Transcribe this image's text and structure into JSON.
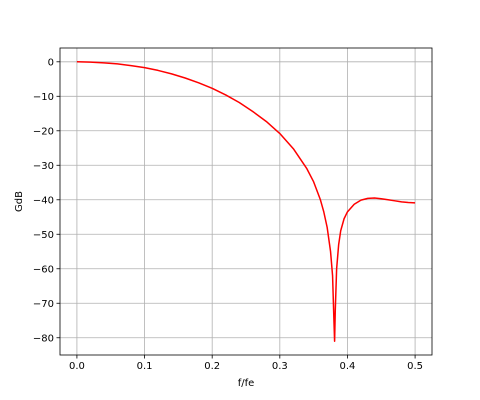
{
  "chart_data": {
    "type": "line",
    "title": "",
    "xlabel": "f/fe",
    "ylabel": "GdB",
    "xlim": [
      -0.025,
      0.525
    ],
    "ylim": [
      -85,
      4
    ],
    "grid": true,
    "xticks": [
      0.0,
      0.1,
      0.2,
      0.3,
      0.4,
      0.5
    ],
    "xtick_labels": [
      "0.0",
      "0.1",
      "0.2",
      "0.3",
      "0.4",
      "0.5"
    ],
    "yticks": [
      0,
      -10,
      -20,
      -30,
      -40,
      -50,
      -60,
      -70,
      -80
    ],
    "ytick_labels": [
      "0",
      "−10",
      "−20",
      "−30",
      "−40",
      "−50",
      "−60",
      "−70",
      "−80"
    ],
    "series": [
      {
        "color": "#ff0000",
        "x": [
          0.0,
          0.02,
          0.04,
          0.06,
          0.08,
          0.1,
          0.12,
          0.14,
          0.16,
          0.18,
          0.2,
          0.22,
          0.24,
          0.26,
          0.28,
          0.3,
          0.32,
          0.34,
          0.35,
          0.36,
          0.365,
          0.37,
          0.375,
          0.378,
          0.38,
          0.381,
          0.382,
          0.384,
          0.387,
          0.39,
          0.395,
          0.4,
          0.41,
          0.42,
          0.43,
          0.44,
          0.45,
          0.46,
          0.47,
          0.48,
          0.49,
          0.5
        ],
        "y": [
          0.0,
          -0.1,
          -0.3,
          -0.6,
          -1.1,
          -1.7,
          -2.5,
          -3.5,
          -4.7,
          -6.1,
          -7.7,
          -9.6,
          -11.8,
          -14.4,
          -17.3,
          -20.8,
          -25.2,
          -31.0,
          -34.8,
          -40.0,
          -43.5,
          -48.0,
          -55.0,
          -62.0,
          -75.0,
          -81.0,
          -72.0,
          -60.0,
          -53.0,
          -49.0,
          -45.5,
          -43.5,
          -41.3,
          -40.1,
          -39.6,
          -39.5,
          -39.7,
          -40.0,
          -40.3,
          -40.6,
          -40.8,
          -40.9
        ]
      }
    ]
  }
}
